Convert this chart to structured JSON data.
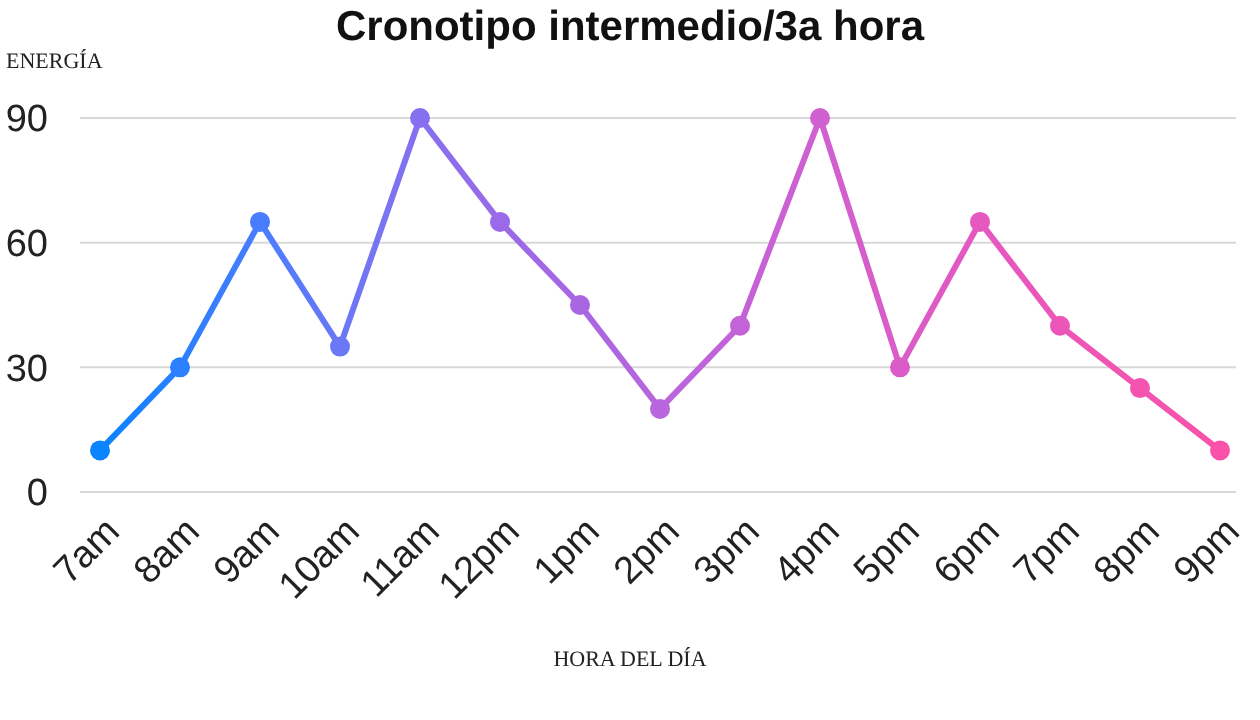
{
  "chart_data": {
    "type": "line",
    "title": "Cronotipo intermedio/3a hora",
    "xlabel": "HORA DEL DÍA",
    "ylabel": "ENERGÍA",
    "categories": [
      "7am",
      "8am",
      "9am",
      "10am",
      "11am",
      "12pm",
      "1pm",
      "2pm",
      "3pm",
      "4pm",
      "5pm",
      "6pm",
      "7pm",
      "8pm",
      "9pm"
    ],
    "series": [
      {
        "values": [
          10,
          30,
          65,
          35,
          90,
          65,
          45,
          20,
          40,
          90,
          30,
          65,
          40,
          25,
          10
        ],
        "colors": [
          "#0a84ff",
          "#2a80ff",
          "#4a7cff",
          "#6a78f5",
          "#8670f0",
          "#9a6ae8",
          "#a866e2",
          "#b866dd",
          "#c462d8",
          "#d060d0",
          "#da5cc8",
          "#e458c0",
          "#ec56b8",
          "#f254b0",
          "#fa52a8"
        ]
      }
    ],
    "ylim": [
      0,
      90
    ],
    "yticks": [
      0,
      30,
      60,
      90
    ],
    "grid": "y",
    "marker": "circle",
    "line_style": "solid"
  }
}
